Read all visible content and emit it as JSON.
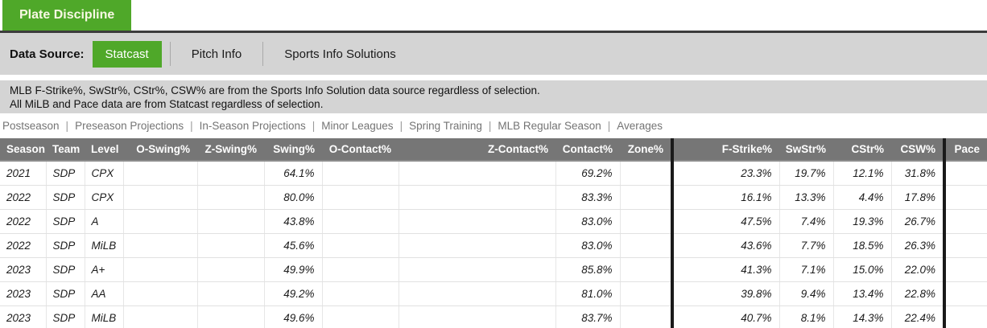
{
  "section_tab": {
    "label": "Plate Discipline"
  },
  "data_source": {
    "label": "Data Source:",
    "options": [
      {
        "label": "Statcast",
        "selected": true
      },
      {
        "label": "Pitch Info",
        "selected": false
      },
      {
        "label": "Sports Info Solutions",
        "selected": false
      }
    ]
  },
  "notes": {
    "line1": "MLB F-Strike%, SwStr%, CStr%, CSW% are from the Sports Info Solution data source regardless of selection.",
    "line2": "All MiLB and Pace data are from Statcast regardless of selection."
  },
  "filter_links": [
    "Postseason",
    "Preseason Projections",
    "In-Season Projections",
    "Minor Leagues",
    "Spring Training",
    "MLB Regular Season",
    "Averages"
  ],
  "colors": {
    "accent_green": "#4fa829",
    "bar_gray": "#d4d4d4",
    "header_gray": "#767676",
    "separator_black": "#1a1a1a"
  },
  "chart_data": {
    "type": "table",
    "columns": [
      "Season",
      "Team",
      "Level",
      "O-Swing%",
      "Z-Swing%",
      "Swing%",
      "O-Contact%",
      "Z-Contact%",
      "Contact%",
      "Zone%",
      "F-Strike%",
      "SwStr%",
      "CStr%",
      "CSW%",
      "Pace"
    ],
    "rows": [
      [
        "2021",
        "SDP",
        "CPX",
        "",
        "",
        "64.1%",
        "",
        "",
        "69.2%",
        "",
        "23.3%",
        "19.7%",
        "12.1%",
        "31.8%",
        ""
      ],
      [
        "2022",
        "SDP",
        "CPX",
        "",
        "",
        "80.0%",
        "",
        "",
        "83.3%",
        "",
        "16.1%",
        "13.3%",
        "4.4%",
        "17.8%",
        ""
      ],
      [
        "2022",
        "SDP",
        "A",
        "",
        "",
        "43.8%",
        "",
        "",
        "83.0%",
        "",
        "47.5%",
        "7.4%",
        "19.3%",
        "26.7%",
        ""
      ],
      [
        "2022",
        "SDP",
        "MiLB",
        "",
        "",
        "45.6%",
        "",
        "",
        "83.0%",
        "",
        "43.6%",
        "7.7%",
        "18.5%",
        "26.3%",
        ""
      ],
      [
        "2023",
        "SDP",
        "A+",
        "",
        "",
        "49.9%",
        "",
        "",
        "85.8%",
        "",
        "41.3%",
        "7.1%",
        "15.0%",
        "22.0%",
        ""
      ],
      [
        "2023",
        "SDP",
        "AA",
        "",
        "",
        "49.2%",
        "",
        "",
        "81.0%",
        "",
        "39.8%",
        "9.4%",
        "13.4%",
        "22.8%",
        ""
      ],
      [
        "2023",
        "SDP",
        "MiLB",
        "",
        "",
        "49.6%",
        "",
        "",
        "83.7%",
        "",
        "40.7%",
        "8.1%",
        "14.3%",
        "22.4%",
        ""
      ]
    ]
  }
}
